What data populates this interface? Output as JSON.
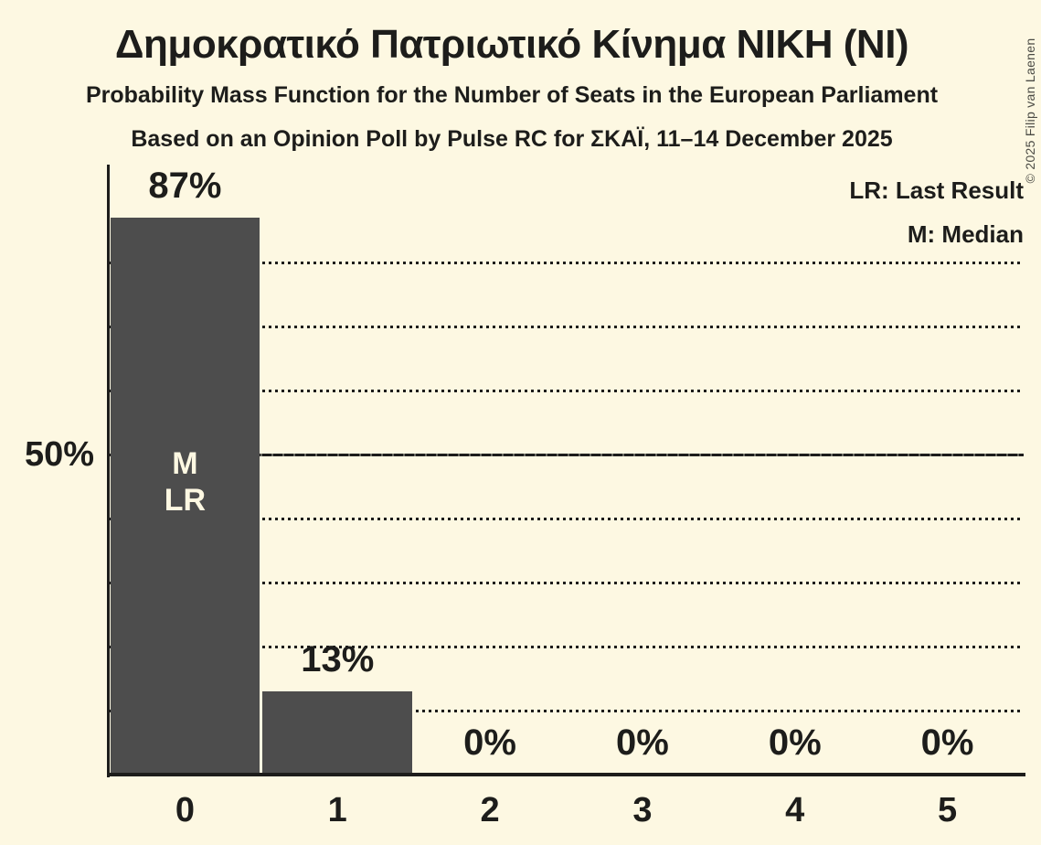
{
  "header": {
    "title": "Δημοκρατικό Πατριωτικό Κίνημα ΝΙΚΗ (ΝΙ)",
    "subtitle1": "Probability Mass Function for the Number of Seats in the European Parliament",
    "subtitle2": "Based on an Opinion Poll by Pulse RC for ΣΚΑΪ, 11–14 December 2025"
  },
  "legend": {
    "lr": "LR: Last Result",
    "m": "M: Median"
  },
  "y_axis": {
    "label": "50%",
    "label_pct": 50
  },
  "copyright": "© 2025 Filip van Laenen",
  "colors": {
    "background": "#fdf8e2",
    "bar": "#4d4d4d",
    "text": "#1d1d1b",
    "bar_annotation_text": "#fdf8e2"
  },
  "chart_data": {
    "type": "bar",
    "title": "Δημοκρατικό Πατριωτικό Κίνημα ΝΙΚΗ (ΝΙ)",
    "subtitle": "Probability Mass Function for the Number of Seats in the European Parliament",
    "xlabel": "",
    "ylabel": "",
    "categories": [
      "0",
      "1",
      "2",
      "3",
      "4",
      "5"
    ],
    "values": [
      87,
      13,
      0,
      0,
      0,
      0
    ],
    "value_labels": [
      "87%",
      "13%",
      "0%",
      "0%",
      "0%",
      "0%"
    ],
    "unit": "percent",
    "ylim": [
      0,
      95
    ],
    "gridlines_pct": [
      10,
      20,
      30,
      40,
      50,
      60,
      70,
      80
    ],
    "solid_gridline_pct": 50,
    "grid": "dotted-horizontal",
    "legend_position": "top-right",
    "median_category": "0",
    "last_result_category": "0",
    "bar_annotations": [
      {
        "category": "0",
        "lines": [
          "M",
          "LR"
        ]
      }
    ]
  }
}
